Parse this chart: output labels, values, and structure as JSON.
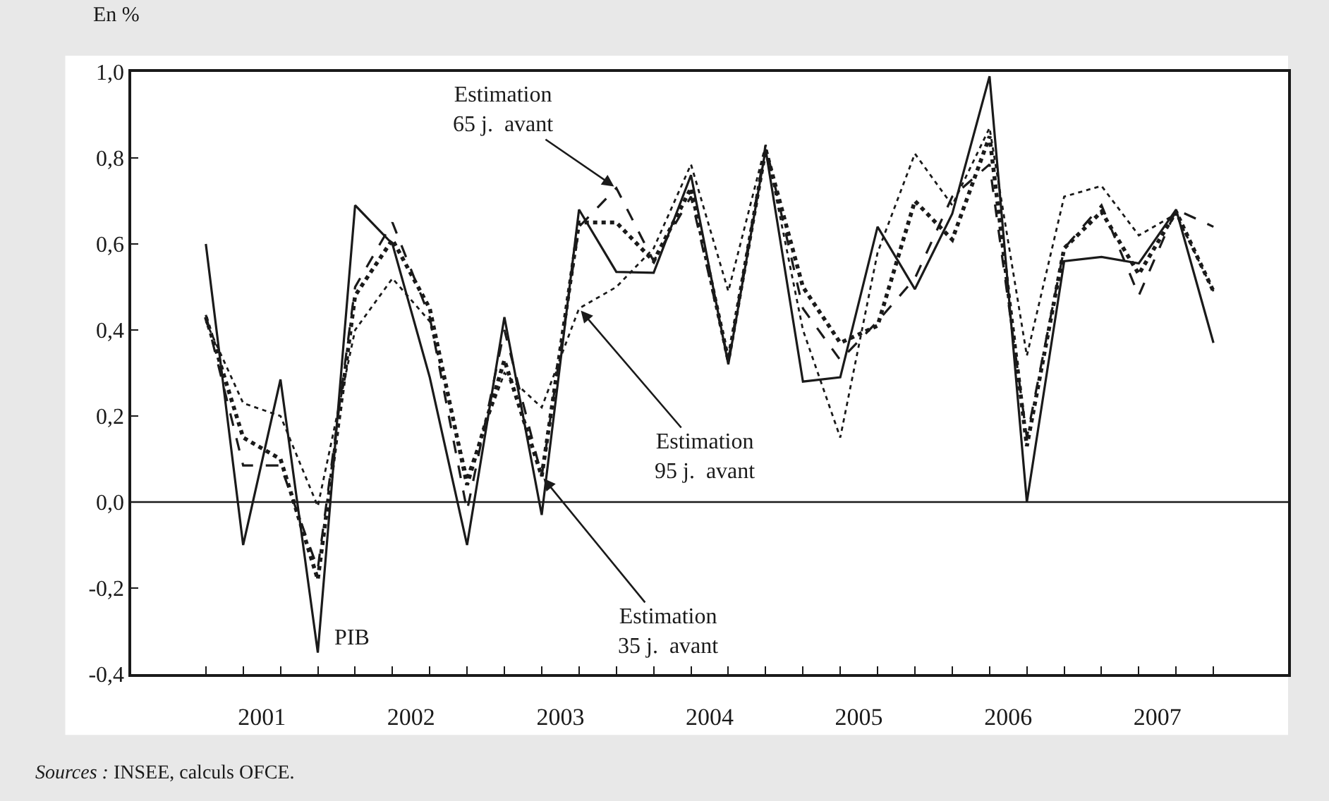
{
  "chart_data": {
    "type": "line",
    "ylabel": "En %",
    "x": [
      2001.125,
      2001.375,
      2001.625,
      2001.875,
      2002.125,
      2002.375,
      2002.625,
      2002.875,
      2003.125,
      2003.375,
      2003.625,
      2003.875,
      2004.125,
      2004.375,
      2004.625,
      2004.875,
      2005.125,
      2005.375,
      2005.625,
      2005.875,
      2006.125,
      2006.375,
      2006.625,
      2006.875,
      2007.125,
      2007.375,
      2007.625,
      2007.875
    ],
    "series": [
      {
        "color": "#1a1a1a",
        "line_style": "solid",
        "values": [
          0.6,
          -0.1,
          0.285,
          -0.35,
          0.69,
          0.6,
          0.29,
          -0.1,
          0.43,
          -0.03,
          0.68,
          0.535,
          0.533,
          0.76,
          0.32,
          0.82,
          0.28,
          0.29,
          0.64,
          0.495,
          0.67,
          0.99,
          0.0,
          0.56,
          0.57,
          0.555,
          0.68,
          0.37
        ]
      },
      {
        "color": "#1a1a1a",
        "line_style": "dashed",
        "values": [
          0.435,
          0.085,
          0.085,
          -0.155,
          0.5,
          0.65,
          0.43,
          -0.02,
          0.4,
          0.06,
          0.64,
          0.73,
          0.56,
          0.71,
          0.33,
          0.83,
          0.45,
          0.33,
          0.42,
          0.52,
          0.71,
          0.785,
          0.15,
          0.59,
          0.69,
          0.48,
          0.68,
          0.64
        ]
      },
      {
        "color": "#1a1a1a",
        "line_style": "dotted",
        "values": [
          0.42,
          0.23,
          0.2,
          -0.01,
          0.4,
          0.52,
          0.42,
          0.06,
          0.3,
          0.22,
          0.45,
          0.5,
          0.59,
          0.785,
          0.49,
          0.83,
          0.4,
          0.15,
          0.58,
          0.81,
          0.69,
          0.87,
          0.34,
          0.71,
          0.735,
          0.62,
          0.67,
          0.49
        ]
      },
      {
        "color": "#1a1a1a",
        "line_style": "dotted",
        "values": [
          0.43,
          0.15,
          0.1,
          -0.18,
          0.48,
          0.61,
          0.45,
          0.04,
          0.33,
          0.06,
          0.65,
          0.65,
          0.56,
          0.73,
          0.33,
          0.82,
          0.5,
          0.37,
          0.41,
          0.7,
          0.61,
          0.85,
          0.13,
          0.59,
          0.675,
          0.53,
          0.675,
          0.49
        ]
      }
    ],
    "xlim": [
      2000.625,
      2008.375
    ],
    "xticks": [
      {
        "value": 2001.5,
        "label": "2001"
      },
      {
        "value": 2002.5,
        "label": "2002"
      },
      {
        "value": 2003.5,
        "label": "2003"
      },
      {
        "value": 2004.5,
        "label": "2004"
      },
      {
        "value": 2005.5,
        "label": "2005"
      },
      {
        "value": 2006.5,
        "label": "2006"
      },
      {
        "value": 2007.5,
        "label": "2007"
      },
      {
        "value": 2001.125,
        "label": null
      },
      {
        "value": 2001.375,
        "label": null
      },
      {
        "value": 2001.625,
        "label": null
      },
      {
        "value": 2001.875,
        "label": null
      },
      {
        "value": 2002.125,
        "label": null
      },
      {
        "value": 2002.375,
        "label": null
      },
      {
        "value": 2002.625,
        "label": null
      },
      {
        "value": 2002.875,
        "label": null
      },
      {
        "value": 2003.125,
        "label": null
      },
      {
        "value": 2003.375,
        "label": null
      },
      {
        "value": 2003.625,
        "label": null
      },
      {
        "value": 2003.875,
        "label": null
      },
      {
        "value": 2004.125,
        "label": null
      },
      {
        "value": 2004.375,
        "label": null
      },
      {
        "value": 2004.625,
        "label": null
      },
      {
        "value": 2004.875,
        "label": null
      },
      {
        "value": 2005.125,
        "label": null
      },
      {
        "value": 2005.375,
        "label": null
      },
      {
        "value": 2005.625,
        "label": null
      },
      {
        "value": 2005.875,
        "label": null
      },
      {
        "value": 2006.125,
        "label": null
      },
      {
        "value": 2006.375,
        "label": null
      },
      {
        "value": 2006.625,
        "label": null
      },
      {
        "value": 2006.875,
        "label": null
      },
      {
        "value": 2007.125,
        "label": null
      },
      {
        "value": 2007.375,
        "label": null
      },
      {
        "value": 2007.625,
        "label": null
      },
      {
        "value": 2007.875,
        "label": null
      }
    ],
    "ylim": [
      -0.4,
      1.0
    ],
    "yticks": [
      {
        "value": -0.4,
        "label": "-0,4"
      },
      {
        "value": -0.2,
        "label": "-0,2"
      },
      {
        "value": 0.0,
        "label": "0,0"
      },
      {
        "value": 0.2,
        "label": "0,2"
      },
      {
        "value": 0.4,
        "label": "0,4"
      },
      {
        "value": 0.6,
        "label": "0,6"
      },
      {
        "value": 0.8,
        "label": "0,8"
      },
      {
        "value": 1.0,
        "label": "1,0"
      }
    ],
    "ref_lines": [
      {
        "axis": "y",
        "value": 0.0,
        "color": "#1a1a1a"
      }
    ],
    "marker": "none",
    "annotations": [
      {
        "text": "PIB",
        "x": 2001.875,
        "y": -0.35
      },
      {
        "text": "Estimation\n65 j.  avant",
        "x": 2003.875,
        "y": 0.73
      },
      {
        "text": "Estimation\n95 j.  avant",
        "x": 2003.625,
        "y": 0.45
      },
      {
        "text": "Estimation\n35 j.  avant",
        "x": 2003.375,
        "y": 0.06
      },
      "Sources : INSEE, calculs OFCE."
    ]
  }
}
